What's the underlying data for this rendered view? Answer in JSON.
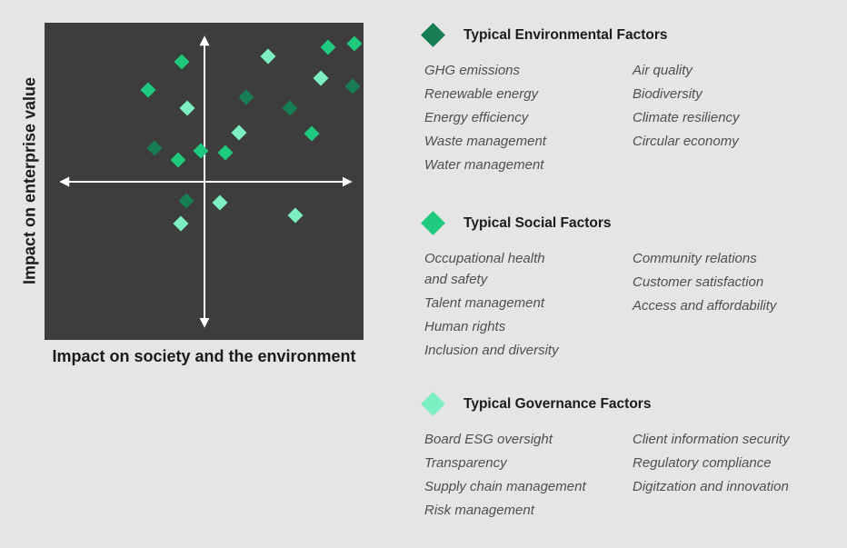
{
  "page": {
    "background_color": "#e5e5e5",
    "plot_background_color": "#3d3d3d",
    "axis_color": "#ffffff"
  },
  "chart": {
    "y_axis_label": "Impact on enterprise value",
    "x_axis_label": "Impact on society and the environment"
  },
  "chart_data": {
    "type": "scatter",
    "title": "",
    "xlabel": "Impact on society and the environment",
    "ylabel": "Impact on enterprise value",
    "x_range": [
      0,
      100
    ],
    "y_range": [
      0,
      100
    ],
    "axes_cross": [
      50,
      50
    ],
    "grid": false,
    "marker": "diamond",
    "legend_position": "right",
    "series": [
      {
        "name": "Environmental",
        "color": "#177d52",
        "points": [
          [
            34.5,
            60.5
          ],
          [
            63.2,
            76.5
          ],
          [
            76.9,
            73.1
          ],
          [
            96.6,
            79.9
          ],
          [
            44.4,
            43.8
          ]
        ]
      },
      {
        "name": "Social",
        "color": "#1fc97d",
        "points": [
          [
            43.0,
            87.7
          ],
          [
            32.5,
            78.8
          ],
          [
            41.9,
            56.7
          ],
          [
            49.0,
            59.6
          ],
          [
            56.7,
            59.0
          ],
          [
            83.8,
            65.0
          ],
          [
            88.9,
            92.3
          ],
          [
            97.2,
            93.4
          ]
        ]
      },
      {
        "name": "Governance",
        "color": "#7df0c2",
        "points": [
          [
            44.7,
            73.1
          ],
          [
            70.1,
            89.4
          ],
          [
            86.6,
            82.5
          ],
          [
            61.0,
            65.3
          ],
          [
            42.7,
            36.7
          ],
          [
            55.0,
            43.3
          ],
          [
            78.6,
            39.3
          ]
        ]
      }
    ]
  },
  "legend": {
    "sections": [
      {
        "title": "Typical Environmental Factors",
        "color": "#177d52",
        "col1": [
          "GHG emissions",
          "Renewable energy",
          "Energy efficiency",
          "Waste management",
          "Water management"
        ],
        "col2": [
          "Air quality",
          "Biodiversity",
          "Climate resiliency",
          "Circular economy"
        ]
      },
      {
        "title": "Typical Social Factors",
        "color": "#1fc97d",
        "col1": [
          "Occupational health\nand safety",
          "Talent management",
          "Human rights",
          "Inclusion and diversity"
        ],
        "col2": [
          "Community relations",
          "Customer satisfaction",
          "Access and affordability"
        ]
      },
      {
        "title": "Typical Governance Factors",
        "color": "#7df0c2",
        "col1": [
          "Board ESG oversight",
          "Transparency",
          "Supply chain management",
          "Risk management"
        ],
        "col2": [
          "Client information security",
          "Regulatory compliance",
          "Digitzation and innovation"
        ]
      }
    ]
  }
}
